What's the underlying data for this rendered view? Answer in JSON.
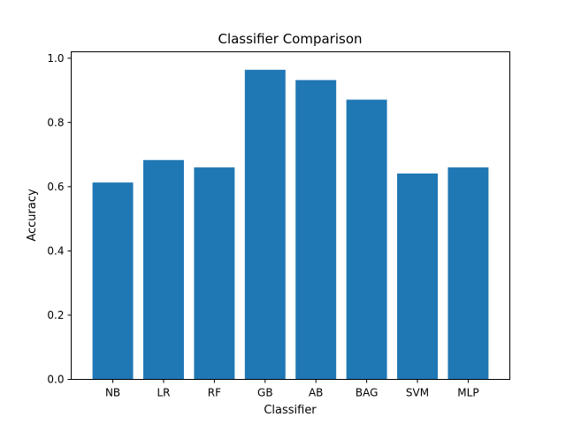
{
  "chart_data": {
    "type": "bar",
    "title": "Classifier Comparison",
    "xlabel": "Classifier",
    "ylabel": "Accuracy",
    "categories": [
      "NB",
      "LR",
      "RF",
      "GB",
      "AB",
      "BAG",
      "SVM",
      "MLP"
    ],
    "values": [
      0.613,
      0.683,
      0.66,
      0.964,
      0.932,
      0.871,
      0.641,
      0.66
    ],
    "ylim": [
      0,
      1.02
    ],
    "yticks": [
      "0.0",
      "0.2",
      "0.4",
      "0.6",
      "0.8",
      "1.0"
    ],
    "grid": false,
    "legend": "none",
    "bar_color": "#1f77b4"
  }
}
